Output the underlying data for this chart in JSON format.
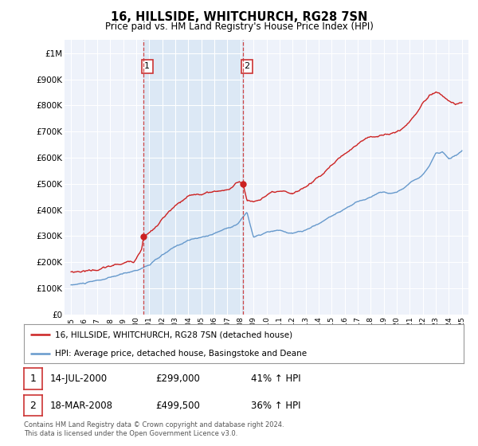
{
  "title": "16, HILLSIDE, WHITCHURCH, RG28 7SN",
  "subtitle": "Price paid vs. HM Land Registry's House Price Index (HPI)",
  "legend_line1": "16, HILLSIDE, WHITCHURCH, RG28 7SN (detached house)",
  "legend_line2": "HPI: Average price, detached house, Basingstoke and Deane",
  "table_row1": [
    "1",
    "14-JUL-2000",
    "£299,000",
    "41% ↑ HPI"
  ],
  "table_row2": [
    "2",
    "18-MAR-2008",
    "£499,500",
    "36% ↑ HPI"
  ],
  "footnote": "Contains HM Land Registry data © Crown copyright and database right 2024.\nThis data is licensed under the Open Government Licence v3.0.",
  "hpi_color": "#6699cc",
  "price_color": "#cc2222",
  "vline_color": "#cc3333",
  "shade_color": "#dce8f5",
  "sale1_x": 2000.54,
  "sale1_y": 299000,
  "sale2_x": 2008.21,
  "sale2_y": 499500,
  "ylim": [
    0,
    1050000
  ],
  "xlim": [
    1994.5,
    2025.5
  ],
  "yticks": [
    0,
    100000,
    200000,
    300000,
    400000,
    500000,
    600000,
    700000,
    800000,
    900000,
    1000000
  ],
  "ytick_labels": [
    "£0",
    "£100K",
    "£200K",
    "£300K",
    "£400K",
    "£500K",
    "£600K",
    "£700K",
    "£800K",
    "£900K",
    "£1M"
  ],
  "background_color": "#eef2fa",
  "grid_color": "#ffffff"
}
